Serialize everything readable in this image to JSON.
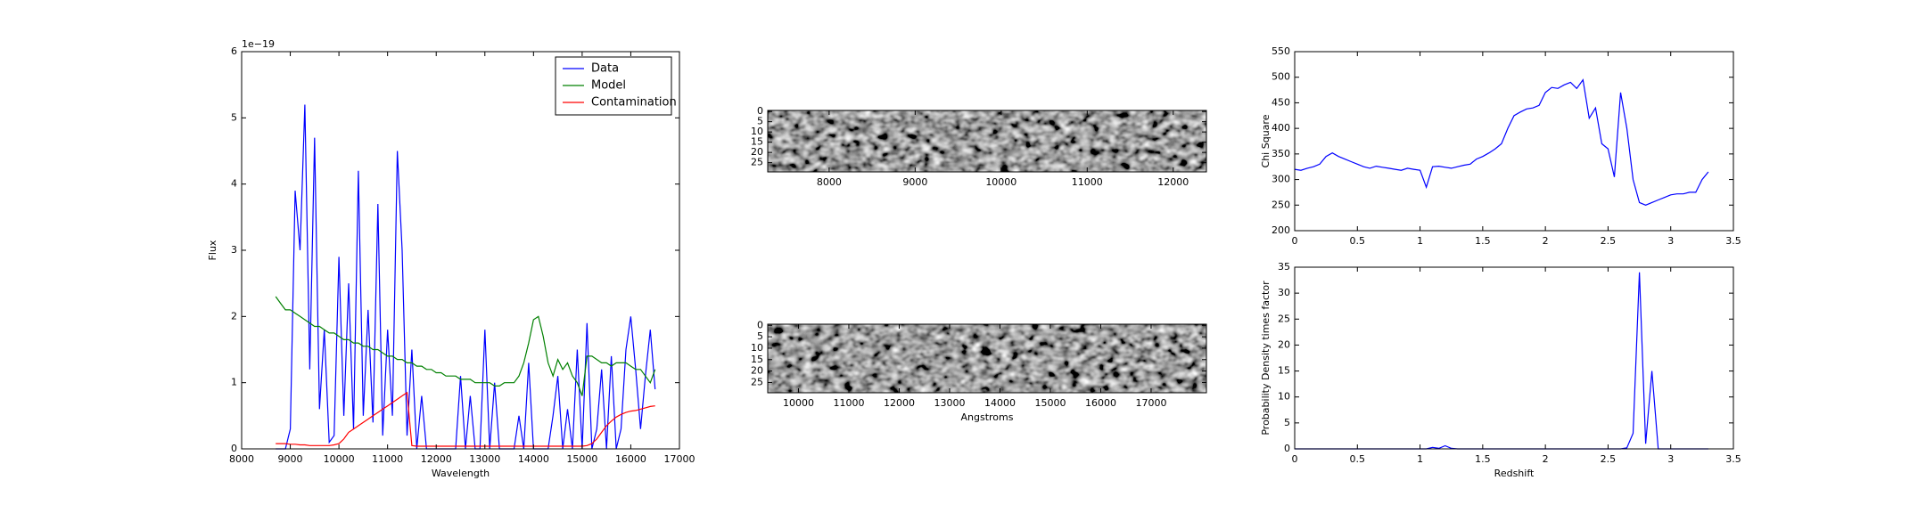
{
  "chart_data": [
    {
      "type": "line",
      "xlabel": "Wavelength",
      "ylabel": "Flux",
      "offset_text": "1e−19",
      "xlim": [
        8000,
        17000
      ],
      "xticks": [
        8000,
        9000,
        10000,
        11000,
        12000,
        13000,
        14000,
        15000,
        16000,
        17000
      ],
      "ylim": [
        0,
        6
      ],
      "yticks": [
        0,
        1,
        2,
        3,
        4,
        5,
        6
      ],
      "legend": "upper right",
      "x": [
        8700,
        8800,
        8900,
        9000,
        9100,
        9200,
        9300,
        9400,
        9500,
        9600,
        9700,
        9800,
        9900,
        10000,
        10100,
        10200,
        10300,
        10400,
        10500,
        10600,
        10700,
        10800,
        10900,
        11000,
        11100,
        11200,
        11300,
        11400,
        11500,
        11600,
        11700,
        11800,
        11900,
        12000,
        12100,
        12200,
        12300,
        12400,
        12500,
        12600,
        12700,
        12800,
        12900,
        13000,
        13100,
        13200,
        13300,
        13400,
        13500,
        13600,
        13700,
        13800,
        13900,
        14000,
        14100,
        14200,
        14300,
        14400,
        14500,
        14600,
        14700,
        14800,
        14900,
        15000,
        15100,
        15200,
        15300,
        15400,
        15500,
        15600,
        15700,
        15800,
        15900,
        16000,
        16100,
        16200,
        16300,
        16400,
        16500
      ],
      "series": [
        {
          "name": "Data",
          "color": "#0000ff",
          "values": [
            0,
            0,
            0,
            0.3,
            3.9,
            3.0,
            5.2,
            1.2,
            4.7,
            0.6,
            1.8,
            0.1,
            0.2,
            2.9,
            0.5,
            2.5,
            0.3,
            4.2,
            0.5,
            2.1,
            0.4,
            3.7,
            0.2,
            1.8,
            0.5,
            4.5,
            3.0,
            0.2,
            1.5,
            0,
            0.8,
            0,
            0,
            0,
            0,
            0,
            0,
            0,
            1.1,
            0,
            0.8,
            0,
            0,
            1.8,
            0,
            1.0,
            0,
            0,
            0,
            0,
            0.5,
            0,
            1.3,
            0,
            0,
            0,
            0,
            0.5,
            1.1,
            0,
            0.6,
            0,
            1.5,
            0,
            1.9,
            0,
            0.3,
            1.2,
            0,
            1.4,
            0,
            0.3,
            1.5,
            2.0,
            1.2,
            0.3,
            1.1,
            1.8,
            0.9
          ]
        },
        {
          "name": "Model",
          "color": "#008000",
          "values": [
            2.3,
            2.2,
            2.1,
            2.1,
            2.05,
            2.0,
            1.95,
            1.9,
            1.85,
            1.85,
            1.8,
            1.75,
            1.75,
            1.7,
            1.65,
            1.65,
            1.6,
            1.6,
            1.55,
            1.55,
            1.5,
            1.5,
            1.45,
            1.4,
            1.4,
            1.35,
            1.35,
            1.3,
            1.3,
            1.25,
            1.25,
            1.2,
            1.2,
            1.15,
            1.15,
            1.1,
            1.1,
            1.1,
            1.05,
            1.05,
            1.05,
            1.0,
            1.0,
            1.0,
            1.0,
            0.95,
            0.95,
            1.0,
            1.0,
            1.0,
            1.1,
            1.3,
            1.6,
            1.95,
            2.0,
            1.7,
            1.3,
            1.1,
            1.35,
            1.2,
            1.3,
            1.1,
            1.0,
            0.8,
            1.4,
            1.4,
            1.35,
            1.3,
            1.3,
            1.25,
            1.3,
            1.3,
            1.3,
            1.25,
            1.2,
            1.2,
            1.1,
            1.0,
            1.2
          ]
        },
        {
          "name": "Contamination",
          "color": "#ff0000",
          "values": [
            0.08,
            0.08,
            0.08,
            0.07,
            0.07,
            0.06,
            0.06,
            0.05,
            0.05,
            0.05,
            0.05,
            0.05,
            0.06,
            0.08,
            0.15,
            0.25,
            0.3,
            0.35,
            0.4,
            0.45,
            0.5,
            0.55,
            0.6,
            0.65,
            0.7,
            0.75,
            0.8,
            0.85,
            0.05,
            0.04,
            0.04,
            0.04,
            0.04,
            0.04,
            0.04,
            0.04,
            0.04,
            0.04,
            0.04,
            0.04,
            0.04,
            0.04,
            0.04,
            0.04,
            0.04,
            0.04,
            0.04,
            0.04,
            0.04,
            0.04,
            0.04,
            0.04,
            0.04,
            0.04,
            0.04,
            0.04,
            0.04,
            0.04,
            0.04,
            0.04,
            0.04,
            0.04,
            0.04,
            0.04,
            0.05,
            0.08,
            0.15,
            0.25,
            0.35,
            0.42,
            0.48,
            0.52,
            0.55,
            0.57,
            0.58,
            0.6,
            0.62,
            0.64,
            0.65
          ]
        }
      ]
    },
    {
      "type": "image",
      "xlim": [
        7286,
        12386
      ],
      "xticks": [
        8000,
        9000,
        10000,
        11000,
        12000
      ],
      "ylim": [
        29.5,
        -0.5
      ],
      "yticks": [
        0,
        5,
        10,
        15,
        20,
        25
      ]
    },
    {
      "type": "image",
      "xlabel": "Angstroms",
      "xlim": [
        9390,
        18098
      ],
      "xticks": [
        10000,
        11000,
        12000,
        13000,
        14000,
        15000,
        16000,
        17000
      ],
      "ylim": [
        29.5,
        -0.5
      ],
      "yticks": [
        0,
        5,
        10,
        15,
        20,
        25
      ]
    },
    {
      "type": "line",
      "ylabel": "Chi Square",
      "xlim": [
        0,
        3.5
      ],
      "xticks": [
        0,
        0.5,
        1,
        1.5,
        2,
        2.5,
        3,
        3.5
      ],
      "ylim": [
        200,
        550
      ],
      "yticks": [
        200,
        250,
        300,
        350,
        400,
        450,
        500,
        550
      ],
      "x": [
        0,
        0.05,
        0.1,
        0.15,
        0.2,
        0.25,
        0.3,
        0.35,
        0.4,
        0.45,
        0.5,
        0.55,
        0.6,
        0.65,
        0.7,
        0.75,
        0.8,
        0.85,
        0.9,
        0.95,
        1,
        1.05,
        1.1,
        1.15,
        1.2,
        1.25,
        1.3,
        1.35,
        1.4,
        1.45,
        1.5,
        1.55,
        1.6,
        1.65,
        1.7,
        1.75,
        1.8,
        1.85,
        1.9,
        1.95,
        2,
        2.05,
        2.1,
        2.15,
        2.2,
        2.25,
        2.3,
        2.35,
        2.4,
        2.45,
        2.5,
        2.55,
        2.6,
        2.65,
        2.7,
        2.75,
        2.8,
        2.85,
        2.9,
        2.95,
        3,
        3.05,
        3.1,
        3.15,
        3.2,
        3.25,
        3.3
      ],
      "series": [
        {
          "name": null,
          "color": "#0000ff",
          "values": [
            320,
            318,
            322,
            325,
            330,
            345,
            352,
            345,
            340,
            335,
            330,
            325,
            322,
            326,
            324,
            322,
            320,
            318,
            322,
            320,
            318,
            285,
            325,
            326,
            324,
            322,
            325,
            328,
            330,
            340,
            345,
            352,
            360,
            370,
            400,
            425,
            432,
            438,
            440,
            445,
            470,
            480,
            478,
            485,
            490,
            478,
            495,
            420,
            440,
            370,
            360,
            305,
            470,
            400,
            300,
            255,
            250,
            255,
            260,
            265,
            270,
            272,
            272,
            275,
            275,
            300,
            315
          ]
        }
      ]
    },
    {
      "type": "line",
      "xlabel": "Redshift",
      "ylabel": "Probability Density times factor",
      "xlim": [
        0,
        3.5
      ],
      "xticks": [
        0,
        0.5,
        1,
        1.5,
        2,
        2.5,
        3,
        3.5
      ],
      "ylim": [
        0,
        35
      ],
      "yticks": [
        0,
        5,
        10,
        15,
        20,
        25,
        30,
        35
      ],
      "x": [
        0,
        0.05,
        0.1,
        0.15,
        0.2,
        0.25,
        0.3,
        0.35,
        0.4,
        0.45,
        0.5,
        0.55,
        0.6,
        0.65,
        0.7,
        0.75,
        0.8,
        0.85,
        0.9,
        0.95,
        1,
        1.05,
        1.1,
        1.15,
        1.2,
        1.25,
        1.3,
        1.35,
        1.4,
        1.45,
        1.5,
        1.55,
        1.6,
        1.65,
        1.7,
        1.75,
        1.8,
        1.85,
        1.9,
        1.95,
        2,
        2.05,
        2.1,
        2.15,
        2.2,
        2.25,
        2.3,
        2.35,
        2.4,
        2.45,
        2.5,
        2.55,
        2.6,
        2.65,
        2.7,
        2.75,
        2.8,
        2.85,
        2.9,
        2.95,
        3,
        3.05,
        3.1,
        3.15,
        3.2,
        3.25,
        3.3
      ],
      "series": [
        {
          "name": null,
          "color": "#0000ff",
          "values": [
            0,
            0,
            0,
            0,
            0,
            0,
            0,
            0,
            0,
            0,
            0,
            0,
            0,
            0,
            0,
            0,
            0,
            0,
            0,
            0,
            0,
            0,
            0.3,
            0.1,
            0.6,
            0.1,
            0,
            0,
            0,
            0,
            0,
            0,
            0,
            0,
            0,
            0,
            0,
            0,
            0,
            0,
            0,
            0,
            0,
            0,
            0,
            0,
            0,
            0,
            0,
            0,
            0,
            0,
            0,
            0.2,
            3,
            34,
            1,
            15,
            0,
            0,
            0,
            0,
            0,
            0,
            0,
            0,
            0
          ]
        }
      ]
    }
  ]
}
